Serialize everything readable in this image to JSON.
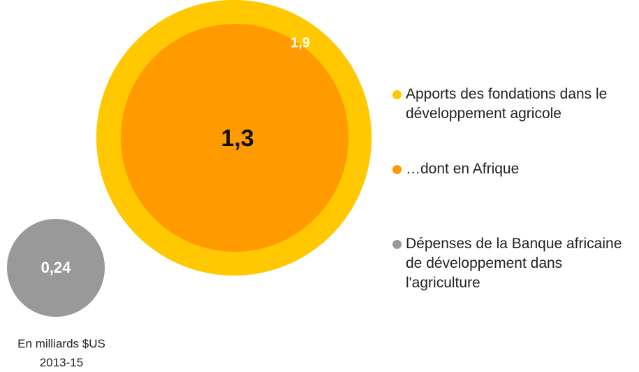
{
  "chart_data": {
    "type": "bubble",
    "series": [
      {
        "name": "Apports des fondations dans le développement agricole",
        "color": "#ffc800",
        "values": [
          1.9
        ],
        "value_labels": [
          "1,9"
        ]
      },
      {
        "name": "…dont en Afrique",
        "color": "#ff9b00",
        "values": [
          1.3
        ],
        "value_labels": [
          "1,3"
        ]
      },
      {
        "name": "Dépenses de la Banque africaine de développement dans l'agriculture",
        "color": "#999999",
        "values": [
          0.24
        ],
        "value_labels": [
          "0,24"
        ]
      }
    ],
    "note": "En milliards $US",
    "period": "2013-15"
  }
}
